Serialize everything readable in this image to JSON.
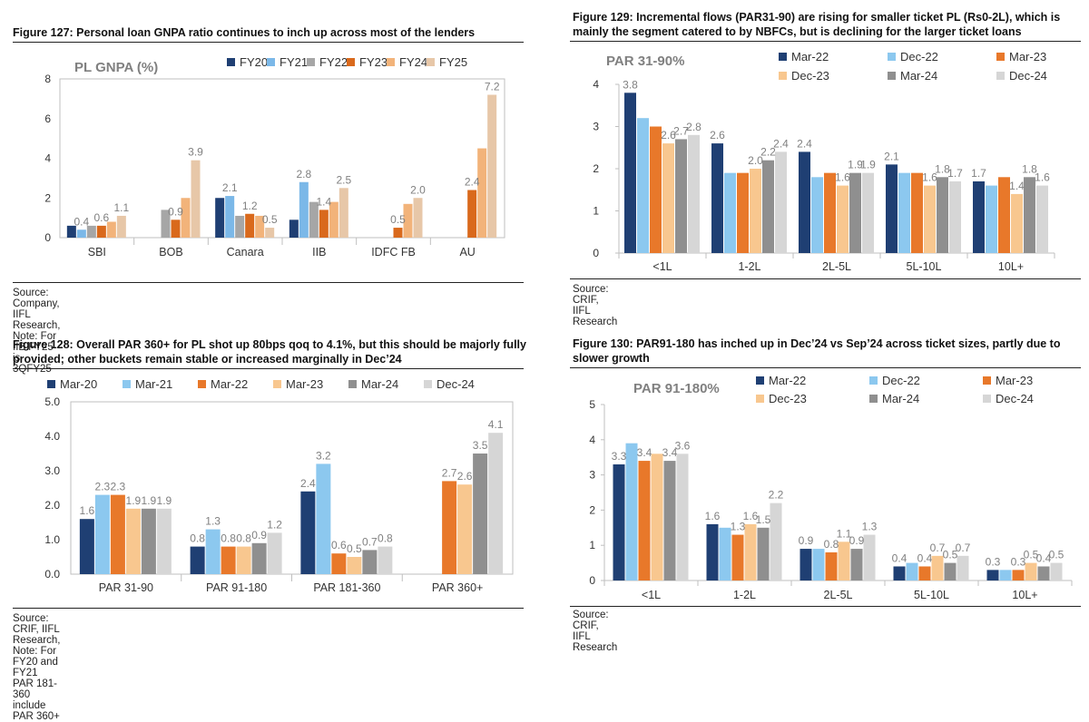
{
  "colors": {
    "palette_fy": [
      "#1f3f73",
      "#7bb8e8",
      "#a6a6a6",
      "#d9691c",
      "#f2b37a",
      "#e7c7a8"
    ],
    "palette_6": [
      "#1f3f73",
      "#8cc8ef",
      "#e8782a",
      "#f8c78f",
      "#8f8f8f",
      "#d6d6d6"
    ],
    "axis": "#bfbfbf",
    "text": "#333333",
    "label_gray": "#808080"
  },
  "figures": [
    {
      "title": "Figure 127: Personal loan GNPA ratio continues to inch up across most of the lenders",
      "source": "Source: Company, IIFL Research, Note: For IIB FY25 is 3QFY25",
      "chart_data": {
        "type": "bar",
        "title": "PL GNPA (%)",
        "categories": [
          "SBI",
          "BOB",
          "Canara",
          "IIB",
          "IDFC FB",
          "AU"
        ],
        "series": [
          {
            "name": "FY20",
            "values": [
              0.6,
              null,
              2.0,
              0.9,
              null,
              null
            ]
          },
          {
            "name": "FY21",
            "values": [
              0.4,
              null,
              2.1,
              2.8,
              null,
              null
            ]
          },
          {
            "name": "FY22",
            "values": [
              0.6,
              1.4,
              1.1,
              1.8,
              null,
              null
            ]
          },
          {
            "name": "FY23",
            "values": [
              0.6,
              0.9,
              1.2,
              1.4,
              0.5,
              2.4
            ]
          },
          {
            "name": "FY24",
            "values": [
              0.8,
              2.0,
              1.1,
              1.8,
              1.7,
              4.5
            ]
          },
          {
            "name": "FY25",
            "values": [
              1.1,
              3.9,
              0.5,
              2.5,
              2.0,
              7.2
            ]
          }
        ],
        "data_labels": [
          {
            "series": 1,
            "index": 0,
            "text": "0.4"
          },
          {
            "series": 3,
            "index": 0,
            "text": "0.6"
          },
          {
            "series": 5,
            "index": 0,
            "text": "1.1"
          },
          {
            "series": 3,
            "index": 1,
            "text": "0.9"
          },
          {
            "series": 5,
            "index": 1,
            "text": "3.9"
          },
          {
            "series": 1,
            "index": 2,
            "text": "2.1"
          },
          {
            "series": 3,
            "index": 2,
            "text": "1.2"
          },
          {
            "series": 5,
            "index": 2,
            "text": "0.5"
          },
          {
            "series": 1,
            "index": 3,
            "text": "2.8"
          },
          {
            "series": 3,
            "index": 3,
            "text": "1.4"
          },
          {
            "series": 5,
            "index": 3,
            "text": "2.5"
          },
          {
            "series": 3,
            "index": 4,
            "text": "0.5"
          },
          {
            "series": 5,
            "index": 4,
            "text": "2.0"
          },
          {
            "series": 3,
            "index": 5,
            "text": "2.4"
          },
          {
            "series": 5,
            "index": 5,
            "text": "7.2"
          }
        ],
        "yticks": [
          "0",
          "2",
          "4",
          "6",
          "8"
        ],
        "ylim": [
          0,
          8
        ],
        "grid": false,
        "legend": "top-right"
      }
    },
    {
      "title": "Figure 129: Incremental flows (PAR31-90) are rising for smaller ticket PL (Rs0-2L), which is mainly the segment catered to by NBFCs, but is declining for the larger ticket loans",
      "source": "Source: CRIF, IIFL Research",
      "chart_data": {
        "type": "bar",
        "title": "PAR 31-90%",
        "categories": [
          "<1L",
          "1-2L",
          "2L-5L",
          "5L-10L",
          "10L+"
        ],
        "series": [
          {
            "name": "Mar-22",
            "values": [
              3.8,
              2.6,
              2.4,
              2.1,
              1.7
            ]
          },
          {
            "name": "Dec-22",
            "values": [
              3.2,
              1.9,
              1.8,
              1.9,
              1.6
            ]
          },
          {
            "name": "Mar-23",
            "values": [
              3.0,
              1.9,
              1.9,
              1.9,
              1.8
            ]
          },
          {
            "name": "Dec-23",
            "values": [
              2.6,
              2.0,
              1.6,
              1.6,
              1.4
            ]
          },
          {
            "name": "Mar-24",
            "values": [
              2.7,
              2.2,
              1.9,
              1.8,
              1.8
            ]
          },
          {
            "name": "Dec-24",
            "values": [
              2.8,
              2.4,
              1.9,
              1.7,
              1.6
            ]
          }
        ],
        "data_labels": [
          {
            "series": 0,
            "index": 0,
            "text": "3.8"
          },
          {
            "series": 3,
            "index": 0,
            "text": "2.6"
          },
          {
            "series": 4,
            "index": 0,
            "text": "2.7"
          },
          {
            "series": 5,
            "index": 0,
            "text": "2.8"
          },
          {
            "series": 0,
            "index": 1,
            "text": "2.6"
          },
          {
            "series": 3,
            "index": 1,
            "text": "2.0"
          },
          {
            "series": 4,
            "index": 1,
            "text": "2.2"
          },
          {
            "series": 5,
            "index": 1,
            "text": "2.4"
          },
          {
            "series": 0,
            "index": 2,
            "text": "2.4"
          },
          {
            "series": 3,
            "index": 2,
            "text": "1.6"
          },
          {
            "series": 4,
            "index": 2,
            "text": "1.9"
          },
          {
            "series": 5,
            "index": 2,
            "text": "1.9"
          },
          {
            "series": 0,
            "index": 3,
            "text": "2.1"
          },
          {
            "series": 3,
            "index": 3,
            "text": "1.6"
          },
          {
            "series": 4,
            "index": 3,
            "text": "1.8"
          },
          {
            "series": 5,
            "index": 3,
            "text": "1.7"
          },
          {
            "series": 0,
            "index": 4,
            "text": "1.7"
          },
          {
            "series": 3,
            "index": 4,
            "text": "1.4"
          },
          {
            "series": 4,
            "index": 4,
            "text": "1.8"
          },
          {
            "series": 5,
            "index": 4,
            "text": "1.6"
          }
        ],
        "yticks": [
          "0",
          "1",
          "2",
          "3",
          "4"
        ],
        "ylim": [
          0,
          4
        ],
        "grid": false,
        "legend": "top-right"
      }
    },
    {
      "title": "Figure 128: Overall PAR 360+ for PL shot up 80bps qoq to 4.1%, but this should be majorly fully provided; other buckets remain stable or increased marginally in Dec’24",
      "source": "Source: CRIF, IIFL Research, Note: For FY20 and FY21 PAR 181-360 include PAR 360+",
      "chart_data": {
        "type": "bar",
        "title": "",
        "categories": [
          "PAR 31-90",
          "PAR 91-180",
          "PAR 181-360",
          "PAR 360+"
        ],
        "series": [
          {
            "name": "Mar-20",
            "values": [
              1.6,
              0.8,
              2.4,
              null
            ]
          },
          {
            "name": "Mar-21",
            "values": [
              2.3,
              1.3,
              3.2,
              null
            ]
          },
          {
            "name": "Mar-22",
            "values": [
              2.3,
              0.8,
              0.6,
              2.7
            ]
          },
          {
            "name": "Mar-23",
            "values": [
              1.9,
              0.8,
              0.5,
              2.6
            ]
          },
          {
            "name": "Mar-24",
            "values": [
              1.9,
              0.9,
              0.7,
              3.5
            ]
          },
          {
            "name": "Dec-24",
            "values": [
              1.9,
              1.2,
              0.8,
              4.1
            ]
          }
        ],
        "data_labels": [
          {
            "series": 0,
            "index": 0,
            "text": "1.6"
          },
          {
            "series": 1,
            "index": 0,
            "text": "2.3"
          },
          {
            "series": 2,
            "index": 0,
            "text": "2.3"
          },
          {
            "series": 3,
            "index": 0,
            "text": "1.9"
          },
          {
            "series": 4,
            "index": 0,
            "text": "1.9"
          },
          {
            "series": 5,
            "index": 0,
            "text": "1.9"
          },
          {
            "series": 0,
            "index": 1,
            "text": "0.8"
          },
          {
            "series": 1,
            "index": 1,
            "text": "1.3"
          },
          {
            "series": 2,
            "index": 1,
            "text": "0.8"
          },
          {
            "series": 3,
            "index": 1,
            "text": "0.8"
          },
          {
            "series": 4,
            "index": 1,
            "text": "0.9"
          },
          {
            "series": 5,
            "index": 1,
            "text": "1.2"
          },
          {
            "series": 0,
            "index": 2,
            "text": "2.4"
          },
          {
            "series": 1,
            "index": 2,
            "text": "3.2"
          },
          {
            "series": 2,
            "index": 2,
            "text": "0.6"
          },
          {
            "series": 3,
            "index": 2,
            "text": "0.5"
          },
          {
            "series": 4,
            "index": 2,
            "text": "0.7"
          },
          {
            "series": 5,
            "index": 2,
            "text": "0.8"
          },
          {
            "series": 2,
            "index": 3,
            "text": "2.7"
          },
          {
            "series": 3,
            "index": 3,
            "text": "2.6"
          },
          {
            "series": 4,
            "index": 3,
            "text": "3.5"
          },
          {
            "series": 5,
            "index": 3,
            "text": "4.1"
          }
        ],
        "yticks": [
          "0.0",
          "1.0",
          "2.0",
          "3.0",
          "4.0",
          "5.0"
        ],
        "ylim": [
          0,
          5
        ],
        "grid": false,
        "legend": "top"
      }
    },
    {
      "title": "Figure 130: PAR91-180 has inched up in Dec’24 vs Sep’24 across ticket sizes, partly due to slower growth",
      "source": "Source: CRIF, IIFL Research",
      "chart_data": {
        "type": "bar",
        "title": "PAR 91-180%",
        "categories": [
          "<1L",
          "1-2L",
          "2L-5L",
          "5L-10L",
          "10L+"
        ],
        "series": [
          {
            "name": "Mar-22",
            "values": [
              3.3,
              1.6,
              0.9,
              0.4,
              0.3
            ]
          },
          {
            "name": "Dec-22",
            "values": [
              3.9,
              1.5,
              0.9,
              0.5,
              0.3
            ]
          },
          {
            "name": "Mar-23",
            "values": [
              3.4,
              1.3,
              0.8,
              0.4,
              0.3
            ]
          },
          {
            "name": "Dec-23",
            "values": [
              3.6,
              1.6,
              1.1,
              0.7,
              0.5
            ]
          },
          {
            "name": "Mar-24",
            "values": [
              3.4,
              1.5,
              0.9,
              0.5,
              0.4
            ]
          },
          {
            "name": "Dec-24",
            "values": [
              3.6,
              2.2,
              1.3,
              0.7,
              0.5
            ]
          }
        ],
        "data_labels": [
          {
            "series": 0,
            "index": 0,
            "text": "3.3"
          },
          {
            "series": 2,
            "index": 0,
            "text": "3.4"
          },
          {
            "series": 4,
            "index": 0,
            "text": "3.4"
          },
          {
            "series": 5,
            "index": 0,
            "text": "3.6"
          },
          {
            "series": 0,
            "index": 1,
            "text": "1.6"
          },
          {
            "series": 2,
            "index": 1,
            "text": "1.3"
          },
          {
            "series": 3,
            "index": 1,
            "text": "1.6"
          },
          {
            "series": 4,
            "index": 1,
            "text": "1.5"
          },
          {
            "series": 5,
            "index": 1,
            "text": "2.2"
          },
          {
            "series": 0,
            "index": 2,
            "text": "0.9"
          },
          {
            "series": 2,
            "index": 2,
            "text": "0.8"
          },
          {
            "series": 3,
            "index": 2,
            "text": "1.1"
          },
          {
            "series": 4,
            "index": 2,
            "text": "0.9"
          },
          {
            "series": 5,
            "index": 2,
            "text": "1.3"
          },
          {
            "series": 0,
            "index": 3,
            "text": "0.4"
          },
          {
            "series": 2,
            "index": 3,
            "text": "0.4"
          },
          {
            "series": 3,
            "index": 3,
            "text": "0.7"
          },
          {
            "series": 4,
            "index": 3,
            "text": "0.5"
          },
          {
            "series": 5,
            "index": 3,
            "text": "0.7"
          },
          {
            "series": 0,
            "index": 4,
            "text": "0.3"
          },
          {
            "series": 2,
            "index": 4,
            "text": "0.3"
          },
          {
            "series": 3,
            "index": 4,
            "text": "0.5"
          },
          {
            "series": 4,
            "index": 4,
            "text": "0.4"
          },
          {
            "series": 5,
            "index": 4,
            "text": "0.5"
          }
        ],
        "yticks": [
          "0",
          "1",
          "2",
          "3",
          "4",
          "5"
        ],
        "ylim": [
          0,
          5
        ],
        "grid": false,
        "legend": "top-right"
      }
    }
  ]
}
